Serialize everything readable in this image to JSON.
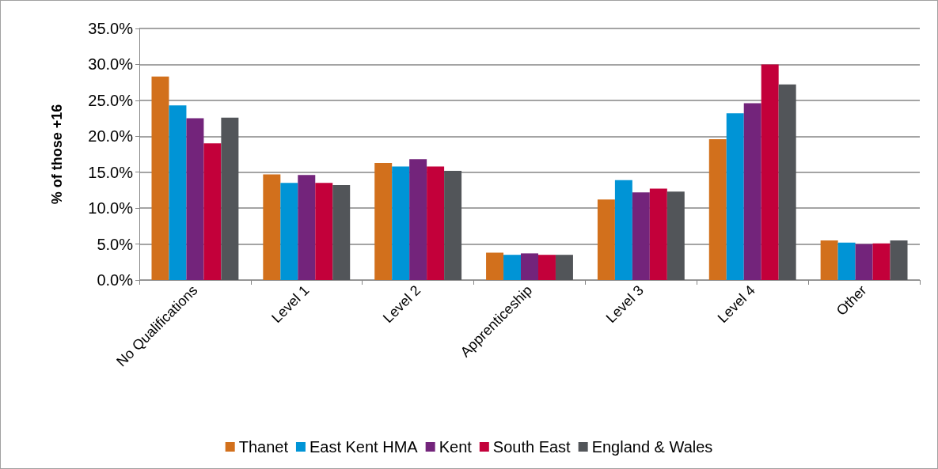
{
  "chart_data": {
    "type": "bar",
    "ylabel": "% of those +16",
    "categories": [
      "No Qualifications",
      "Level 1",
      "Level 2",
      "Apprenticeship",
      "Level 3",
      "Level 4",
      "Other"
    ],
    "series": [
      {
        "name": "Thanet",
        "color": "#d2701c",
        "values": [
          28.3,
          14.7,
          16.3,
          3.8,
          11.2,
          19.6,
          5.5
        ]
      },
      {
        "name": "East Kent HMA",
        "color": "#0094d6",
        "values": [
          24.3,
          13.5,
          15.8,
          3.5,
          13.9,
          23.2,
          5.2
        ]
      },
      {
        "name": "Kent",
        "color": "#73247b",
        "values": [
          22.5,
          14.6,
          16.8,
          3.7,
          12.2,
          24.6,
          5.0
        ]
      },
      {
        "name": "South East",
        "color": "#c3003a",
        "values": [
          19.0,
          13.5,
          15.8,
          3.5,
          12.7,
          30.0,
          5.1
        ]
      },
      {
        "name": "England & Wales",
        "color": "#525559",
        "values": [
          22.6,
          13.2,
          15.2,
          3.5,
          12.3,
          27.2,
          5.5
        ]
      }
    ],
    "ylim": [
      0,
      35
    ],
    "yticks": [
      {
        "value": 0,
        "label": "0.0%"
      },
      {
        "value": 5,
        "label": "5.0%"
      },
      {
        "value": 10,
        "label": "10.0%"
      },
      {
        "value": 15,
        "label": "15.0%"
      },
      {
        "value": 20,
        "label": "20.0%"
      },
      {
        "value": 25,
        "label": "25.0%"
      },
      {
        "value": 30,
        "label": "30.0%"
      },
      {
        "value": 35,
        "label": "35.0%"
      }
    ],
    "grid": "y",
    "legend": "bottom"
  }
}
